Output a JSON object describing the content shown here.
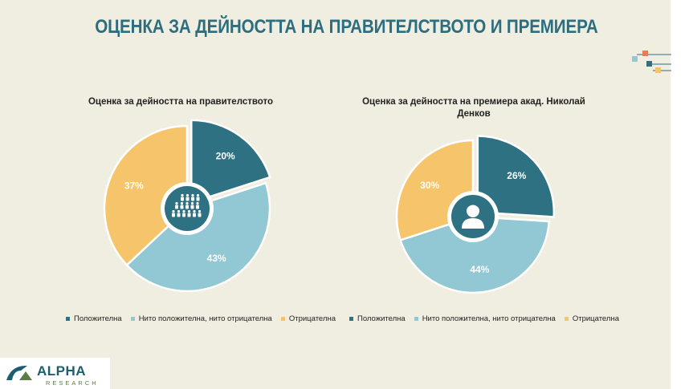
{
  "page": {
    "title": "ОЦЕНКА ЗА ДЕЙНОСТТА НА ПРАВИТЕЛСТВОТО И ПРЕМИЕРА"
  },
  "colors": {
    "positive": "#2e7182",
    "neutral": "#92c7d4",
    "negative": "#f6c56b",
    "title": "#2c6e80"
  },
  "legend": {
    "positive": "Положителна",
    "neutral": "Нито положителна, нито отрицателна",
    "negative": "Отрицателна"
  },
  "chart_data": [
    {
      "type": "pie",
      "title": "Оценка за дейността на правителството",
      "categories": [
        "Положителна",
        "Нито положителна, нито отрицателна",
        "Отрицателна"
      ],
      "values": [
        20,
        43,
        37
      ],
      "labels": [
        "20%",
        "43%",
        "37%"
      ],
      "icon": "group-icon"
    },
    {
      "type": "pie",
      "title": "Оценка за дейността на премиера акад. Николай Денков",
      "categories": [
        "Положителна",
        "Нито положителна, нито отрицателна",
        "Отрицателна"
      ],
      "values": [
        26,
        44,
        30
      ],
      "labels": [
        "26%",
        "44%",
        "30%"
      ],
      "icon": "person-icon"
    }
  ],
  "logo": {
    "word": "ALPHA",
    "sub": "RESEARCH"
  }
}
